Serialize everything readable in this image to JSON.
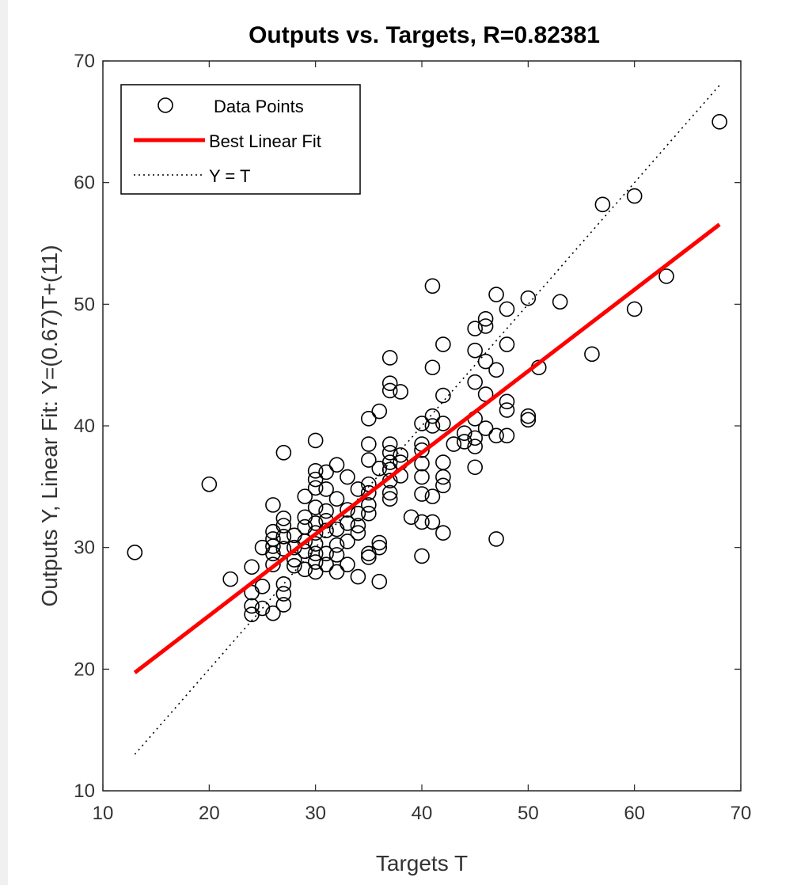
{
  "chart_data": {
    "type": "scatter",
    "title": "Outputs vs. Targets, R=0.82381",
    "xlabel": "Targets T",
    "ylabel": "Outputs Y,  Linear Fit: Y=(0.67)T+(11)",
    "xlim": [
      10,
      70
    ],
    "ylim": [
      10,
      70
    ],
    "xticks": [
      10,
      20,
      30,
      40,
      50,
      60,
      70
    ],
    "yticks": [
      10,
      20,
      30,
      40,
      50,
      60,
      70
    ],
    "grid": false,
    "legend_position": "top-left",
    "legend": [
      "Data Points",
      "Best Linear Fit",
      "Y = T"
    ],
    "colors": {
      "points": "#000000",
      "fit": "#ff0000",
      "identity": "#000000"
    },
    "fit": {
      "slope": 0.67,
      "intercept": 11,
      "x_range": [
        13,
        68
      ]
    },
    "identity": {
      "x_range": [
        13,
        68
      ]
    },
    "series": [
      {
        "name": "Data Points",
        "points": [
          [
            13,
            29.6
          ],
          [
            20,
            35.2
          ],
          [
            22,
            27.4
          ],
          [
            24,
            28.4
          ],
          [
            24,
            26.3
          ],
          [
            24,
            25.2
          ],
          [
            24,
            24.5
          ],
          [
            25,
            30.0
          ],
          [
            25,
            26.8
          ],
          [
            25,
            25.0
          ],
          [
            26,
            33.5
          ],
          [
            26,
            31.3
          ],
          [
            26,
            30.7
          ],
          [
            26,
            30.1
          ],
          [
            26,
            29.5
          ],
          [
            26,
            28.6
          ],
          [
            26,
            24.6
          ],
          [
            27,
            37.8
          ],
          [
            27,
            32.4
          ],
          [
            27,
            31.8
          ],
          [
            27,
            30.9
          ],
          [
            27,
            29.9
          ],
          [
            27,
            27.0
          ],
          [
            27,
            26.2
          ],
          [
            27,
            25.3
          ],
          [
            28,
            31.0
          ],
          [
            28,
            30.0
          ],
          [
            28,
            29.0
          ],
          [
            28,
            28.5
          ],
          [
            29,
            34.2
          ],
          [
            29,
            32.5
          ],
          [
            29,
            31.7
          ],
          [
            29,
            30.5
          ],
          [
            29,
            29.7
          ],
          [
            29,
            28.2
          ],
          [
            30,
            38.8
          ],
          [
            30,
            36.3
          ],
          [
            30,
            35.6
          ],
          [
            30,
            34.9
          ],
          [
            30,
            33.3
          ],
          [
            30,
            32.0
          ],
          [
            30,
            31.2
          ],
          [
            30,
            30.3
          ],
          [
            30,
            29.5
          ],
          [
            30,
            28.8
          ],
          [
            30,
            28.0
          ],
          [
            31,
            36.2
          ],
          [
            31,
            34.8
          ],
          [
            31,
            33.0
          ],
          [
            31,
            32.2
          ],
          [
            31,
            31.4
          ],
          [
            31,
            29.5
          ],
          [
            31,
            28.6
          ],
          [
            32,
            36.8
          ],
          [
            32,
            34.0
          ],
          [
            32,
            31.5
          ],
          [
            32,
            30.2
          ],
          [
            32,
            29.4
          ],
          [
            32,
            28.0
          ],
          [
            33,
            35.8
          ],
          [
            33,
            33.1
          ],
          [
            33,
            32.0
          ],
          [
            33,
            30.5
          ],
          [
            33,
            28.6
          ],
          [
            34,
            34.8
          ],
          [
            34,
            32.8
          ],
          [
            34,
            31.8
          ],
          [
            34,
            31.2
          ],
          [
            34,
            27.6
          ],
          [
            35,
            40.6
          ],
          [
            35,
            38.5
          ],
          [
            35,
            37.2
          ],
          [
            35,
            35.2
          ],
          [
            35,
            34.5
          ],
          [
            35,
            33.5
          ],
          [
            35,
            32.8
          ],
          [
            35,
            29.5
          ],
          [
            35,
            29.2
          ],
          [
            36,
            41.2
          ],
          [
            36,
            36.5
          ],
          [
            36,
            30.4
          ],
          [
            36,
            30.0
          ],
          [
            36,
            27.2
          ],
          [
            37,
            45.6
          ],
          [
            37,
            43.5
          ],
          [
            37,
            42.9
          ],
          [
            37,
            38.5
          ],
          [
            37,
            37.8
          ],
          [
            37,
            37.0
          ],
          [
            37,
            36.4
          ],
          [
            37,
            35.5
          ],
          [
            37,
            34.5
          ],
          [
            37,
            34.0
          ],
          [
            38,
            42.8
          ],
          [
            38,
            37.6
          ],
          [
            38,
            37.0
          ],
          [
            38,
            35.9
          ],
          [
            39,
            32.5
          ],
          [
            40,
            40.2
          ],
          [
            40,
            38.5
          ],
          [
            40,
            38.0
          ],
          [
            40,
            36.9
          ],
          [
            40,
            35.8
          ],
          [
            40,
            34.4
          ],
          [
            40,
            32.1
          ],
          [
            40,
            29.3
          ],
          [
            41,
            51.5
          ],
          [
            41,
            44.8
          ],
          [
            41,
            40.8
          ],
          [
            41,
            40.0
          ],
          [
            41,
            34.2
          ],
          [
            41,
            32.1
          ],
          [
            42,
            46.7
          ],
          [
            42,
            42.5
          ],
          [
            42,
            40.2
          ],
          [
            42,
            37.0
          ],
          [
            42,
            35.8
          ],
          [
            42,
            35.1
          ],
          [
            42,
            31.2
          ],
          [
            43,
            38.5
          ],
          [
            44,
            39.4
          ],
          [
            44,
            38.7
          ],
          [
            45,
            48.0
          ],
          [
            45,
            46.2
          ],
          [
            45,
            43.6
          ],
          [
            45,
            40.6
          ],
          [
            45,
            39.0
          ],
          [
            45,
            38.3
          ],
          [
            45,
            36.6
          ],
          [
            46,
            48.8
          ],
          [
            46,
            48.2
          ],
          [
            46,
            45.3
          ],
          [
            46,
            42.6
          ],
          [
            46,
            39.8
          ],
          [
            47,
            50.8
          ],
          [
            47,
            44.6
          ],
          [
            47,
            39.2
          ],
          [
            47,
            30.7
          ],
          [
            48,
            49.6
          ],
          [
            48,
            46.7
          ],
          [
            48,
            42.0
          ],
          [
            48,
            41.3
          ],
          [
            48,
            39.2
          ],
          [
            50,
            50.5
          ],
          [
            50,
            40.8
          ],
          [
            50,
            40.5
          ],
          [
            51,
            44.8
          ],
          [
            53,
            50.2
          ],
          [
            56,
            45.9
          ],
          [
            57,
            58.2
          ],
          [
            60,
            58.9
          ],
          [
            60,
            49.6
          ],
          [
            63,
            52.3
          ],
          [
            68,
            65.0
          ]
        ]
      }
    ]
  }
}
